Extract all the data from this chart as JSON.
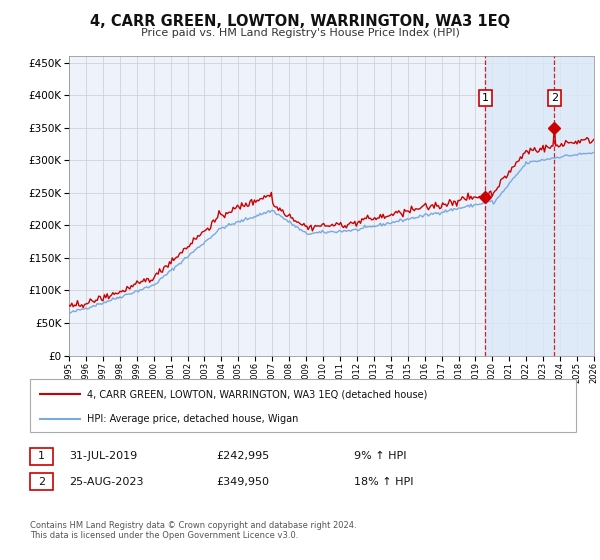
{
  "title": "4, CARR GREEN, LOWTON, WARRINGTON, WA3 1EQ",
  "subtitle": "Price paid vs. HM Land Registry's House Price Index (HPI)",
  "red_label": "4, CARR GREEN, LOWTON, WARRINGTON, WA3 1EQ (detached house)",
  "blue_label": "HPI: Average price, detached house, Wigan",
  "annotation1": {
    "num": "1",
    "date": "31-JUL-2019",
    "price": "£242,995",
    "pct": "9% ↑ HPI"
  },
  "annotation2": {
    "num": "2",
    "date": "25-AUG-2023",
    "price": "£349,950",
    "pct": "18% ↑ HPI"
  },
  "footer": "Contains HM Land Registry data © Crown copyright and database right 2024.\nThis data is licensed under the Open Government Licence v3.0.",
  "ylim": [
    0,
    460000
  ],
  "yticks": [
    0,
    50000,
    100000,
    150000,
    200000,
    250000,
    300000,
    350000,
    400000,
    450000
  ],
  "xmin": 1995,
  "xmax": 2026,
  "background_color": "#ffffff",
  "plot_bg_color": "#eef2fb",
  "grid_color": "#cccccc",
  "red_color": "#cc0000",
  "blue_color": "#7aaadd",
  "shade_color": "#dce8f8",
  "marker1_year": 2019.58,
  "marker1_y": 242995,
  "marker2_year": 2023.65,
  "marker2_y": 349950
}
